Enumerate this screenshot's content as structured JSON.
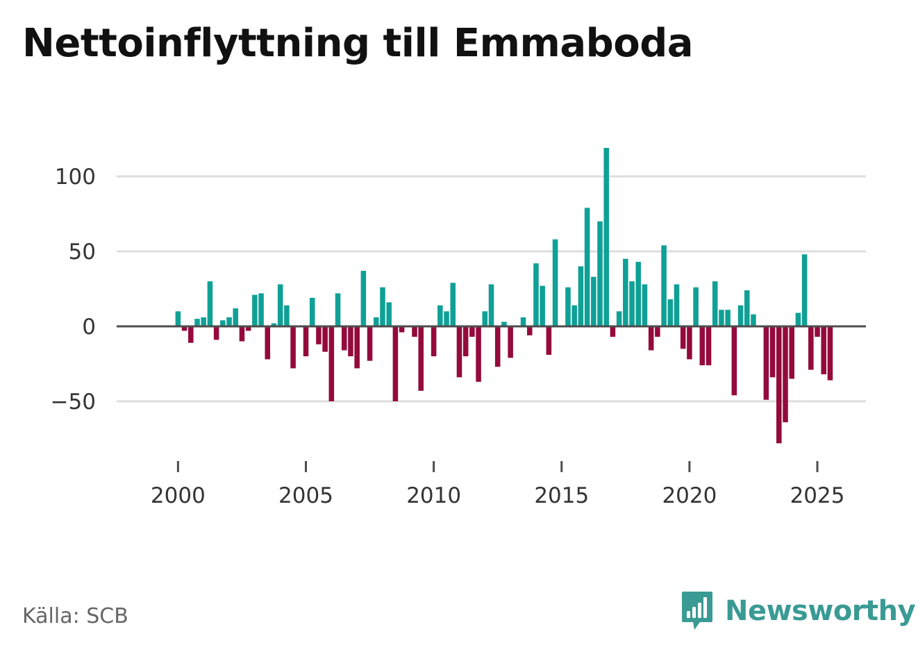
{
  "title": "Nettoinflyttning till Emmaboda",
  "source": "Källa: SCB",
  "brand": {
    "name": "Newsworthy",
    "icon": "bar-chart-speech-bubble-icon",
    "color": "#3a9a94"
  },
  "colors": {
    "positive": "#0fa096",
    "negative": "#940a3d",
    "zero_line": "#4d4d4d",
    "grid": "#dddddd",
    "ticks": "#333333"
  },
  "chart_data": {
    "type": "bar",
    "title": "Nettoinflyttning till Emmaboda",
    "xlabel": "",
    "ylabel": "",
    "period": "quarterly",
    "x_start": 2000.0,
    "x_step": 0.25,
    "xlim": [
      1997.6,
      2026.9
    ],
    "ylim": [
      -88,
      125
    ],
    "x_ticks": [
      2000,
      2005,
      2010,
      2015,
      2020,
      2025
    ],
    "x_tick_labels": [
      "2000",
      "2005",
      "2010",
      "2015",
      "2020",
      "2025"
    ],
    "y_ticks": [
      -50,
      0,
      50,
      100
    ],
    "y_tick_labels": [
      "−50",
      "0",
      "50",
      "100"
    ],
    "grid": true,
    "values": [
      10,
      -3,
      -11,
      5,
      6,
      30,
      -9,
      4,
      6,
      12,
      -10,
      -3,
      21,
      22,
      -22,
      2,
      28,
      14,
      -28,
      0,
      -20,
      19,
      -12,
      -17,
      -50,
      22,
      -16,
      -20,
      -28,
      37,
      -23,
      6,
      26,
      16,
      -50,
      -4,
      0,
      -7,
      -43,
      0,
      -20,
      14,
      10,
      29,
      -34,
      -20,
      -7,
      -37,
      10,
      28,
      -27,
      3,
      -21,
      0,
      6,
      -6,
      42,
      27,
      -19,
      58,
      0,
      26,
      14,
      40,
      79,
      33,
      70,
      119,
      -7,
      10,
      45,
      30,
      43,
      28,
      -16,
      -7,
      54,
      18,
      28,
      -15,
      -22,
      26,
      -26,
      -26,
      30,
      11,
      11,
      -46,
      14,
      24,
      8,
      0,
      -49,
      -34,
      -78,
      -64,
      -35,
      9,
      48,
      -29,
      -7,
      -32,
      -36
    ]
  }
}
